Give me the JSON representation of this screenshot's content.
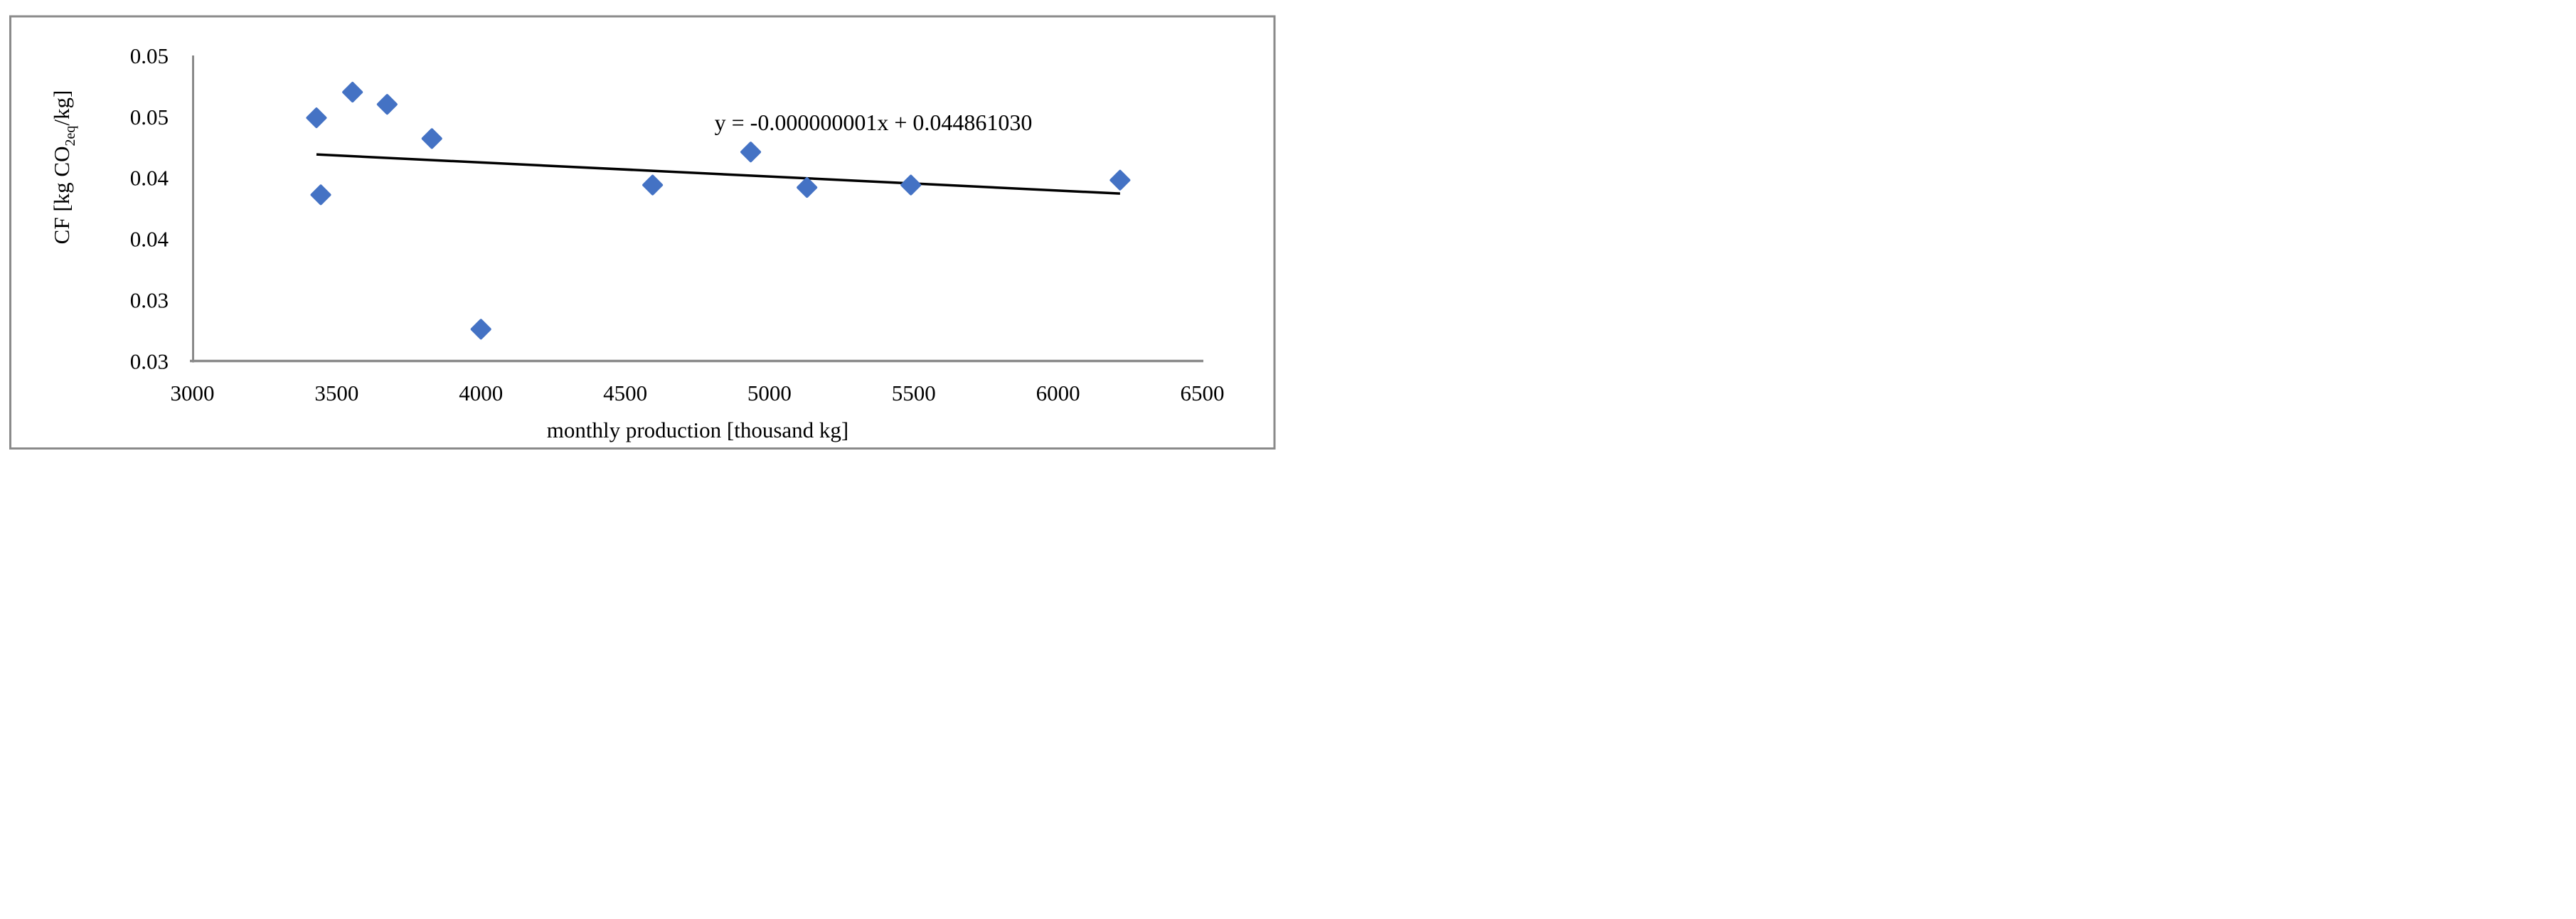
{
  "figure": {
    "background": "#ffffff",
    "border_color": "#8a8a8a"
  },
  "chart_data": {
    "type": "scatter",
    "title": "",
    "xlabel": "monthly production [thousand kg]",
    "ylabel": "CF [kg CO2eq/kg]",
    "ylabel_parts": {
      "prefix": "CF [kg CO",
      "subscript": "2eq",
      "suffix": "/kg]"
    },
    "xlim": [
      3000,
      6500
    ],
    "ylim": [
      0.025,
      0.05
    ],
    "grid": false,
    "legend": false,
    "x_ticks": {
      "values": [
        3000,
        3500,
        4000,
        4500,
        5000,
        5500,
        6000,
        6500
      ],
      "labels": [
        "3000",
        "3500",
        "4000",
        "4500",
        "5000",
        "5500",
        "6000",
        "6500"
      ]
    },
    "y_ticks": {
      "values": [
        0.025,
        0.03,
        0.035,
        0.04,
        0.045,
        0.05
      ],
      "labels": [
        "0.03",
        "0.03",
        "0.04",
        "0.04",
        "0.05",
        "0.05"
      ]
    },
    "series": [
      {
        "marker": "diamond",
        "color": "#4472C4",
        "points": [
          [
            3430,
            0.0449
          ],
          [
            3445,
            0.0386
          ],
          [
            3555,
            0.047
          ],
          [
            3675,
            0.046
          ],
          [
            3830,
            0.0432
          ],
          [
            4000,
            0.0276
          ],
          [
            4595,
            0.0394
          ],
          [
            4935,
            0.0421
          ],
          [
            5130,
            0.0392
          ],
          [
            5490,
            0.0394
          ],
          [
            6215,
            0.0398
          ]
        ]
      }
    ],
    "trendline": {
      "equation": "y = -0.000000001x + 0.044861030",
      "color": "#000000",
      "x_start": 3430,
      "y_start": 0.0419,
      "x_end": 6215,
      "y_end": 0.0387
    },
    "axis_color": "#8a8a8a",
    "text_color": "#000000"
  }
}
